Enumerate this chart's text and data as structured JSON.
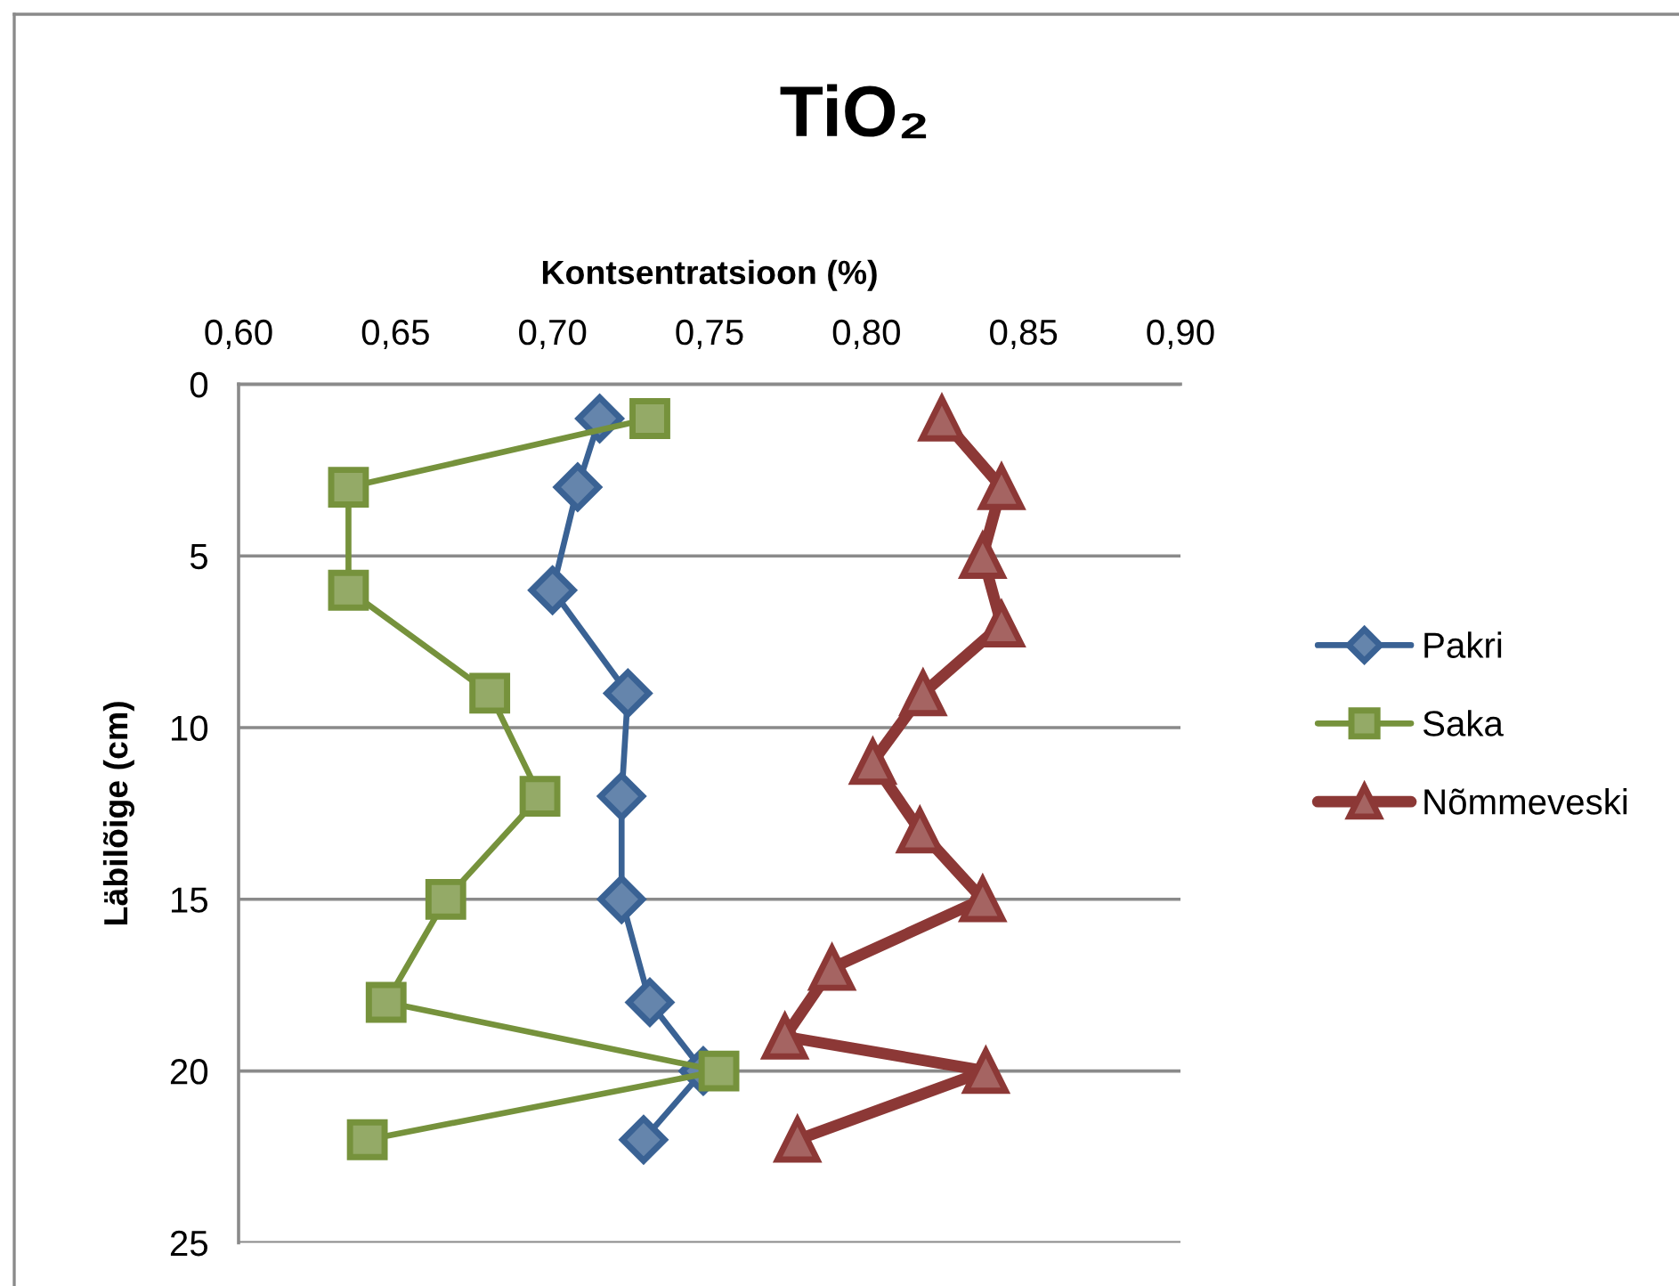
{
  "chart_data": {
    "type": "line",
    "title": "TiO₂",
    "xlabel": "Kontsentratsioon (%)",
    "ylabel": "Läbilõige (cm)",
    "xlim": [
      0.6,
      0.9
    ],
    "xticks": [
      {
        "value": 0.6,
        "label": "0,60"
      },
      {
        "value": 0.65,
        "label": "0,65"
      },
      {
        "value": 0.7,
        "label": "0,70"
      },
      {
        "value": 0.75,
        "label": "0,75"
      },
      {
        "value": 0.8,
        "label": "0,80"
      },
      {
        "value": 0.85,
        "label": "0,85"
      },
      {
        "value": 0.9,
        "label": "0,90"
      }
    ],
    "ylim": [
      25,
      0
    ],
    "yticks": [
      0,
      5,
      10,
      15,
      20,
      25
    ],
    "grid": "y",
    "legend": "right",
    "series": [
      {
        "name": "Pakri",
        "color": "#3a6294",
        "marker": "diamond",
        "x": [
          0.715,
          0.708,
          0.7,
          0.724,
          0.722,
          0.722,
          0.731,
          0.748,
          0.729
        ],
        "values": [
          1,
          3,
          6,
          9,
          12,
          15,
          18,
          20,
          22
        ]
      },
      {
        "name": "Saka",
        "color": "#76923c",
        "marker": "square",
        "x": [
          0.731,
          0.635,
          0.635,
          0.68,
          0.696,
          0.666,
          0.647,
          0.753,
          0.641
        ],
        "values": [
          1,
          3,
          6,
          9,
          12,
          15,
          18,
          20,
          22
        ]
      },
      {
        "name": "Nõmmeveski",
        "color": "#8c3836",
        "marker": "triangle",
        "x": [
          0.824,
          0.843,
          0.837,
          0.843,
          0.818,
          0.802,
          0.817,
          0.837,
          0.789,
          0.774,
          0.838,
          0.778
        ],
        "values": [
          1,
          3,
          5,
          7,
          9,
          11,
          13,
          15,
          17,
          19,
          20,
          22
        ]
      }
    ]
  }
}
